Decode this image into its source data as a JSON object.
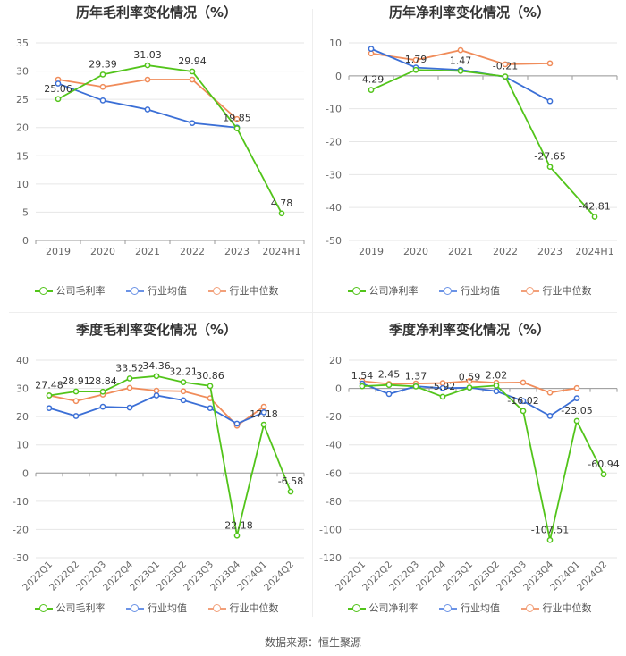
{
  "source": "数据来源：恒生聚源",
  "colors": {
    "company": "#52c41a",
    "avg": "#3b6fd6",
    "median": "#f08c5a",
    "axis": "#999999",
    "grid": "#e6e6e6",
    "label": "#333333"
  },
  "chart_data": [
    {
      "type": "line",
      "title": "历年毛利率变化情况（%）",
      "categories": [
        "2019",
        "2020",
        "2021",
        "2022",
        "2023",
        "2024H1"
      ],
      "ylim": [
        0,
        35
      ],
      "yticks": [
        0,
        5,
        10,
        15,
        20,
        25,
        30,
        35
      ],
      "rotate_x": false,
      "series": [
        {
          "name": "公司毛利率",
          "key": "company",
          "values": [
            25.06,
            29.39,
            31.03,
            29.94,
            19.85,
            4.78
          ],
          "labels": [
            "25.06",
            "29.39",
            "31.03",
            "29.94",
            "19.85",
            "4.78"
          ]
        },
        {
          "name": "行业均值",
          "key": "avg",
          "values": [
            27.8,
            24.8,
            23.2,
            20.8,
            20.0,
            null
          ]
        },
        {
          "name": "行业中位数",
          "key": "median",
          "values": [
            28.5,
            27.2,
            28.5,
            28.5,
            21.5,
            null
          ]
        }
      ]
    },
    {
      "type": "line",
      "title": "历年净利率变化情况（%）",
      "categories": [
        "2019",
        "2020",
        "2021",
        "2022",
        "2023",
        "2024H1"
      ],
      "ylim": [
        -50,
        10
      ],
      "yticks": [
        -50,
        -40,
        -30,
        -20,
        -10,
        0,
        10
      ],
      "rotate_x": false,
      "series": [
        {
          "name": "公司净利率",
          "key": "company",
          "values": [
            -4.29,
            1.79,
            1.47,
            -0.21,
            -27.65,
            -42.81
          ],
          "labels": [
            "-4.29",
            "1.79",
            "1.47",
            "-0.21",
            "-27.65",
            "-42.81"
          ]
        },
        {
          "name": "行业均值",
          "key": "avg",
          "values": [
            8.2,
            2.5,
            1.8,
            -0.3,
            -7.7,
            null
          ]
        },
        {
          "name": "行业中位数",
          "key": "median",
          "values": [
            6.8,
            4.8,
            7.8,
            3.5,
            3.8,
            null
          ]
        }
      ]
    },
    {
      "type": "line",
      "title": "季度毛利率变化情况（%）",
      "categories": [
        "2022Q1",
        "2022Q2",
        "2022Q3",
        "2022Q4",
        "2023Q1",
        "2023Q2",
        "2023Q3",
        "2023Q4",
        "2024Q1",
        "2024Q2"
      ],
      "ylim": [
        -30,
        40
      ],
      "yticks": [
        -30,
        -20,
        -10,
        0,
        10,
        20,
        30,
        40
      ],
      "rotate_x": true,
      "series": [
        {
          "name": "公司毛利率",
          "key": "company",
          "values": [
            27.48,
            28.91,
            28.84,
            33.52,
            34.36,
            32.21,
            30.86,
            -22.18,
            17.18,
            -6.58
          ],
          "labels": [
            "27.48",
            "28.91",
            "28.84",
            "33.52",
            "34.36",
            "32.21",
            "30.86",
            "-22.18",
            "17.18",
            "-6.58"
          ]
        },
        {
          "name": "行业均值",
          "key": "avg",
          "values": [
            23.0,
            20.2,
            23.5,
            23.2,
            27.5,
            25.8,
            23.0,
            17.5,
            21.5,
            null
          ]
        },
        {
          "name": "行业中位数",
          "key": "median",
          "values": [
            27.5,
            25.5,
            27.8,
            30.2,
            29.2,
            29.0,
            26.5,
            16.8,
            23.5,
            null
          ]
        }
      ]
    },
    {
      "type": "line",
      "title": "季度净利率变化情况（%）",
      "categories": [
        "2022Q1",
        "2022Q2",
        "2022Q3",
        "2022Q4",
        "2023Q1",
        "2023Q2",
        "2023Q3",
        "2023Q4",
        "2024Q1",
        "2024Q2"
      ],
      "ylim": [
        -120,
        20
      ],
      "yticks": [
        -120,
        -100,
        -80,
        -60,
        -40,
        -20,
        0,
        20
      ],
      "rotate_x": true,
      "series": [
        {
          "name": "公司净利率",
          "key": "company",
          "values": [
            1.54,
            2.45,
            1.37,
            -5.92,
            0.59,
            2.02,
            -16.02,
            -107.51,
            -23.05,
            -60.94
          ],
          "labels": [
            "1.54",
            "2.45",
            "1.37",
            "-5.92",
            "0.59",
            "2.02",
            "-16.02",
            "-107.51",
            "-23.05",
            "-60.94"
          ]
        },
        {
          "name": "行业均值",
          "key": "avg",
          "values": [
            3.5,
            -4.0,
            1.5,
            0.2,
            0.5,
            -2.0,
            -9.0,
            -19.5,
            -7.0,
            null
          ]
        },
        {
          "name": "行业中位数",
          "key": "median",
          "values": [
            5.2,
            3.2,
            3.5,
            3.8,
            5.2,
            4.0,
            4.2,
            -3.0,
            0.2,
            null
          ]
        }
      ]
    }
  ]
}
